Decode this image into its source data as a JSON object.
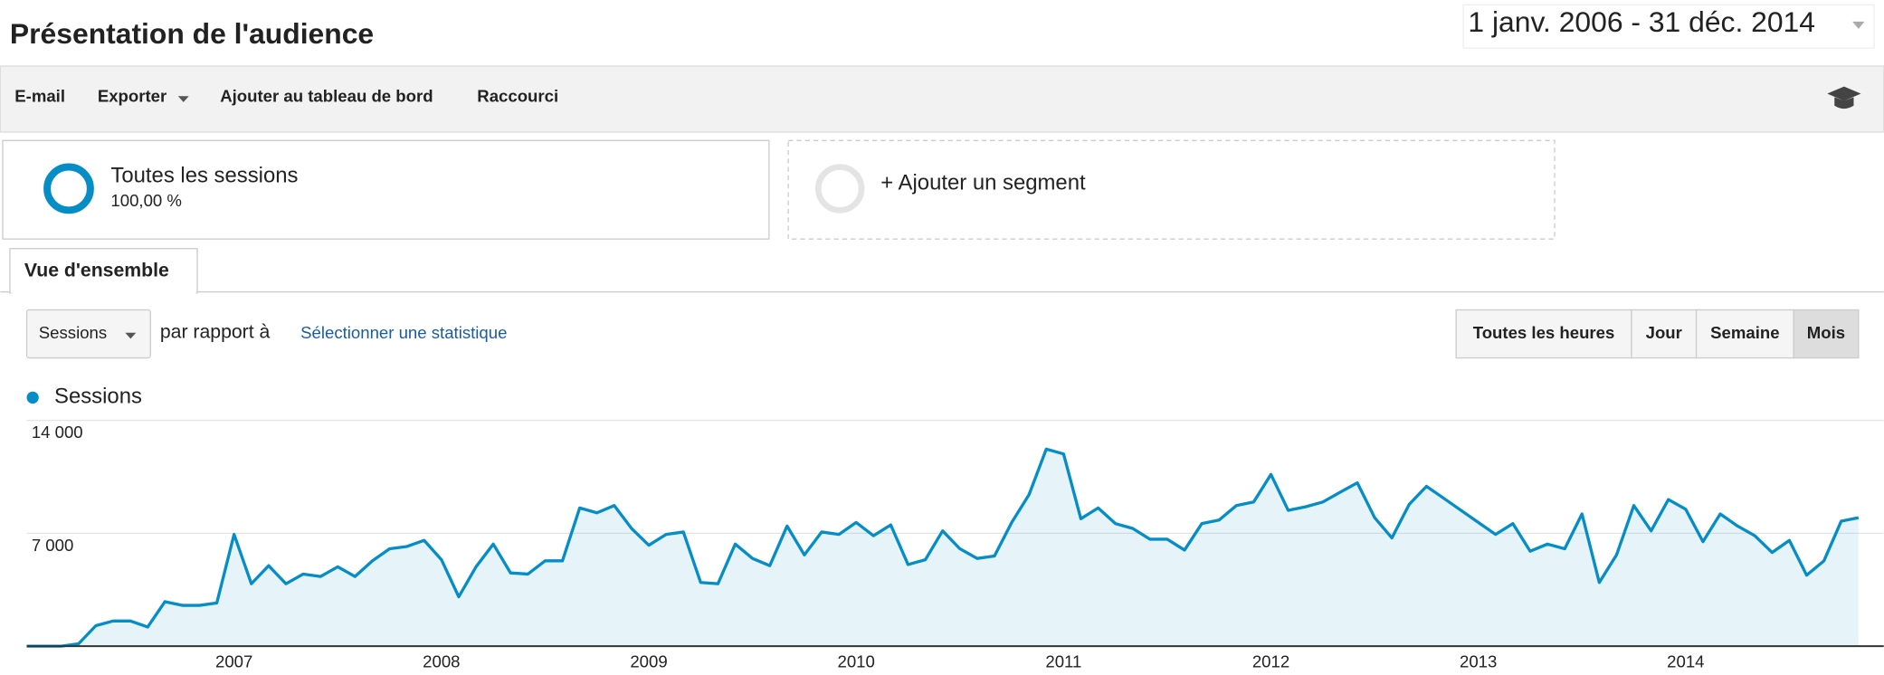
{
  "header": {
    "title": "Présentation de l'audience",
    "date_range": "1 janv. 2006 - 31 déc. 2014"
  },
  "toolbar": [
    "E-mail",
    "Exporter",
    "Ajouter au tableau de bord",
    "Raccourci"
  ],
  "segments": [
    {
      "name": "Toutes les sessions",
      "share": "100,00 %"
    },
    {
      "name": "+ Ajouter un segment"
    }
  ],
  "tab": "Vue d'ensemble",
  "controls": {
    "metric": "Sessions",
    "compare_text": "par rapport à",
    "select_metric": "Sélectionner une statistique",
    "granularity": [
      "Toutes les heures",
      "Jour",
      "Semaine",
      "Mois"
    ],
    "active": 3
  },
  "chart_data": {
    "type": "line",
    "area": true,
    "grid": true,
    "categories": [
      null,
      null,
      null,
      null,
      null,
      null,
      null,
      null,
      null,
      null,
      null,
      null,
      "2007",
      null,
      null,
      null,
      null,
      null,
      null,
      null,
      null,
      null,
      null,
      null,
      "2008",
      null,
      null,
      null,
      null,
      null,
      null,
      null,
      null,
      null,
      null,
      null,
      "2009",
      null,
      null,
      null,
      null,
      null,
      null,
      null,
      null,
      null,
      null,
      null,
      "2010",
      null,
      null,
      null,
      null,
      null,
      null,
      null,
      null,
      null,
      null,
      null,
      "2011",
      null,
      null,
      null,
      null,
      null,
      null,
      null,
      null,
      null,
      null,
      null,
      "2012",
      null,
      null,
      null,
      null,
      null,
      null,
      null,
      null,
      null,
      null,
      null,
      "2013",
      null,
      null,
      null,
      null,
      null,
      null,
      null,
      null,
      null,
      null,
      null,
      "2014",
      null,
      null,
      null,
      null,
      null,
      null,
      null,
      null,
      null,
      null
    ],
    "series": [
      {
        "name": "Sessions",
        "color": "#058dc7",
        "values": [
          0,
          0,
          0,
          150,
          1270,
          1560,
          1560,
          1190,
          2760,
          2530,
          2530,
          2680,
          6930,
          3870,
          4990,
          3870,
          4470,
          4320,
          4920,
          4320,
          5290,
          6040,
          6180,
          6560,
          5360,
          3060,
          4920,
          6330,
          4540,
          4470,
          5290,
          5290,
          8570,
          8270,
          8720,
          7300,
          6260,
          6930,
          7080,
          3950,
          3870,
          6330,
          5440,
          4990,
          7450,
          5660,
          7080,
          6930,
          7670,
          6850,
          7520,
          5060,
          5360,
          7150,
          6040,
          5440,
          5590,
          7670,
          9390,
          12220,
          11920,
          7900,
          8570,
          7600,
          7300,
          6630,
          6630,
          5960,
          7600,
          7820,
          8720,
          8940,
          10650,
          8420,
          8640,
          8940,
          9540,
          10130,
          7970,
          6710,
          8790,
          9910,
          9170,
          8420,
          7670,
          6930,
          7600,
          5890,
          6330,
          6040,
          8200,
          3950,
          5660,
          8720,
          7150,
          9090,
          8490,
          6480,
          8200,
          7450,
          6850,
          5810,
          6560,
          4400,
          5290,
          7750,
          7970
        ]
      }
    ],
    "ylim": [
      0,
      14000
    ],
    "yticks": [
      {
        "value": 7000,
        "label": "7 000"
      },
      {
        "value": 14000,
        "label": "14 000"
      }
    ]
  }
}
